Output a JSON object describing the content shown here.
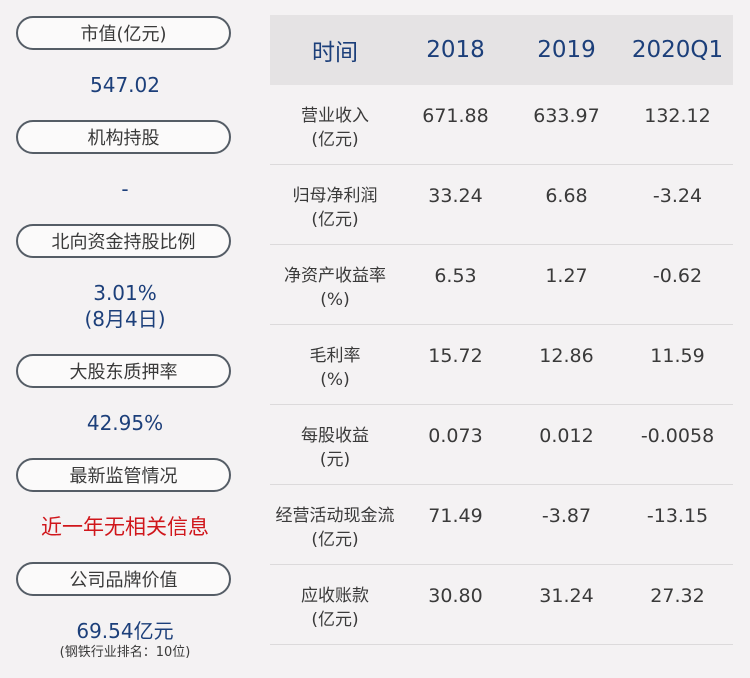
{
  "left_panel": {
    "items": [
      {
        "label": "市值(亿元)",
        "value": "547.02"
      },
      {
        "label": "机构持股",
        "value": "-"
      },
      {
        "label": "北向资金持股比例",
        "value": "3.01%",
        "value2": "(8月4日)"
      },
      {
        "label": "大股东质押率",
        "value": "42.95%"
      },
      {
        "label": "最新监管情况",
        "value": "近一年无相关信息"
      },
      {
        "label": "公司品牌价值",
        "value": "69.54亿元",
        "note": "(钢铁行业排名：10位)"
      }
    ]
  },
  "table": {
    "headers": [
      "时间",
      "2018",
      "2019",
      "2020Q1"
    ],
    "rows": [
      {
        "name": "营业收入",
        "unit": "(亿元)",
        "values": [
          "671.88",
          "633.97",
          "132.12"
        ]
      },
      {
        "name": "归母净利润",
        "unit": "(亿元)",
        "values": [
          "33.24",
          "6.68",
          "-3.24"
        ]
      },
      {
        "name": "净资产收益率",
        "unit": "(%)",
        "values": [
          "6.53",
          "1.27",
          "-0.62"
        ]
      },
      {
        "name": "毛利率",
        "unit": "(%)",
        "values": [
          "15.72",
          "12.86",
          "11.59"
        ]
      },
      {
        "name": "每股收益",
        "unit": "(元)",
        "values": [
          "0.073",
          "0.012",
          "-0.0058"
        ]
      },
      {
        "name": "经营活动现金流",
        "unit": "(亿元)",
        "values": [
          "71.49",
          "-3.87",
          "-13.15"
        ]
      },
      {
        "name": "应收账款",
        "unit": "(亿元)",
        "values": [
          "30.80",
          "31.24",
          "27.32"
        ]
      }
    ]
  },
  "colors": {
    "value_blue": "#1c3f7a",
    "alert_red": "#d0161b",
    "background": "#f4f2f3"
  }
}
